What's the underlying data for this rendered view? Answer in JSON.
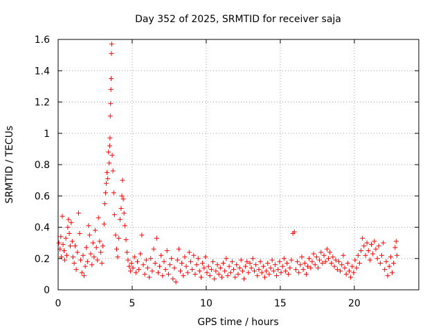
{
  "chart_data": {
    "type": "scatter",
    "title": "Day 352 of 2025, SRMTID for receiver saja",
    "xlabel": "GPS time / hours",
    "ylabel": "SRMTID / TECUs",
    "xlim": [
      0,
      24.35
    ],
    "ylim": [
      0,
      1.6
    ],
    "xticks": [
      0,
      5,
      10,
      15,
      20
    ],
    "xtick_labels": [
      "0",
      "5",
      "10",
      "15",
      "20"
    ],
    "yticks": [
      0,
      0.2,
      0.4,
      0.6,
      0.8,
      1.0,
      1.2,
      1.4,
      1.6
    ],
    "ytick_labels": [
      "0",
      "0.2",
      "0.4",
      "0.6",
      "0.8",
      "1",
      "1.2",
      "1.4",
      "1.6"
    ],
    "grid": true,
    "marker": "plus",
    "color": "#ff0000",
    "series": [
      {
        "name": "SRMTID",
        "points": [
          [
            0.05,
            0.3
          ],
          [
            0.12,
            0.26
          ],
          [
            0.18,
            0.34
          ],
          [
            0.22,
            0.21
          ],
          [
            0.28,
            0.47
          ],
          [
            0.33,
            0.29
          ],
          [
            0.4,
            0.25
          ],
          [
            0.45,
            0.19
          ],
          [
            0.52,
            0.33
          ],
          [
            0.58,
            0.22
          ],
          [
            0.65,
            0.4
          ],
          [
            0.7,
            0.45
          ],
          [
            0.75,
            0.36
          ],
          [
            0.82,
            0.28
          ],
          [
            0.88,
            0.43
          ],
          [
            0.95,
            0.31
          ],
          [
            1.0,
            0.21
          ],
          [
            1.08,
            0.17
          ],
          [
            1.15,
            0.28
          ],
          [
            1.22,
            0.13
          ],
          [
            1.3,
            0.24
          ],
          [
            1.38,
            0.49
          ],
          [
            1.45,
            0.36
          ],
          [
            1.52,
            0.19
          ],
          [
            1.6,
            0.11
          ],
          [
            1.68,
            0.22
          ],
          [
            1.75,
            0.09
          ],
          [
            1.83,
            0.15
          ],
          [
            1.9,
            0.27
          ],
          [
            1.98,
            0.18
          ],
          [
            2.05,
            0.41
          ],
          [
            2.12,
            0.35
          ],
          [
            2.2,
            0.23
          ],
          [
            2.28,
            0.16
          ],
          [
            2.35,
            0.3
          ],
          [
            2.42,
            0.21
          ],
          [
            2.5,
            0.38
          ],
          [
            2.58,
            0.27
          ],
          [
            2.65,
            0.19
          ],
          [
            2.72,
            0.46
          ],
          [
            2.8,
            0.31
          ],
          [
            2.88,
            0.24
          ],
          [
            2.95,
            0.17
          ],
          [
            3.02,
            0.28
          ],
          [
            3.1,
            0.42
          ],
          [
            3.15,
            0.55
          ],
          [
            3.2,
            0.62
          ],
          [
            3.25,
            0.68
          ],
          [
            3.3,
            0.75
          ],
          [
            3.35,
            0.71
          ],
          [
            3.4,
            0.88
          ],
          [
            3.45,
            0.81
          ],
          [
            3.48,
            0.92
          ],
          [
            3.5,
            0.97
          ],
          [
            3.52,
            1.11
          ],
          [
            3.54,
            1.19
          ],
          [
            3.56,
            1.28
          ],
          [
            3.58,
            1.35
          ],
          [
            3.6,
            1.51
          ],
          [
            3.62,
            1.57
          ],
          [
            3.65,
            0.86
          ],
          [
            3.7,
            0.76
          ],
          [
            3.75,
            0.62
          ],
          [
            3.8,
            0.48
          ],
          [
            3.88,
            0.35
          ],
          [
            3.95,
            0.26
          ],
          [
            4.02,
            0.21
          ],
          [
            4.1,
            0.33
          ],
          [
            4.18,
            0.45
          ],
          [
            4.25,
            0.52
          ],
          [
            4.3,
            0.6
          ],
          [
            4.35,
            0.7
          ],
          [
            4.4,
            0.58
          ],
          [
            4.45,
            0.49
          ],
          [
            4.5,
            0.41
          ],
          [
            4.58,
            0.32
          ],
          [
            4.65,
            0.24
          ],
          [
            4.72,
            0.19
          ],
          [
            4.8,
            0.15
          ],
          [
            4.88,
            0.12
          ],
          [
            4.95,
            0.17
          ],
          [
            5.05,
            0.14
          ],
          [
            5.15,
            0.21
          ],
          [
            5.25,
            0.11
          ],
          [
            5.35,
            0.18
          ],
          [
            5.45,
            0.13
          ],
          [
            5.55,
            0.23
          ],
          [
            5.65,
            0.35
          ],
          [
            5.75,
            0.16
          ],
          [
            5.85,
            0.1
          ],
          [
            5.95,
            0.19
          ],
          [
            6.05,
            0.14
          ],
          [
            6.15,
            0.08
          ],
          [
            6.25,
            0.2
          ],
          [
            6.35,
            0.12
          ],
          [
            6.45,
            0.26
          ],
          [
            6.55,
            0.17
          ],
          [
            6.65,
            0.33
          ],
          [
            6.75,
            0.11
          ],
          [
            6.85,
            0.15
          ],
          [
            6.95,
            0.22
          ],
          [
            7.05,
            0.09
          ],
          [
            7.15,
            0.18
          ],
          [
            7.25,
            0.13
          ],
          [
            7.35,
            0.25
          ],
          [
            7.45,
            0.1
          ],
          [
            7.55,
            0.16
          ],
          [
            7.65,
            0.2
          ],
          [
            7.75,
            0.07
          ],
          [
            7.85,
            0.14
          ],
          [
            7.95,
            0.05
          ],
          [
            8.05,
            0.19
          ],
          [
            8.15,
            0.26
          ],
          [
            8.25,
            0.12
          ],
          [
            8.35,
            0.17
          ],
          [
            8.45,
            0.09
          ],
          [
            8.55,
            0.21
          ],
          [
            8.65,
            0.15
          ],
          [
            8.75,
            0.11
          ],
          [
            8.85,
            0.24
          ],
          [
            8.95,
            0.18
          ],
          [
            9.05,
            0.13
          ],
          [
            9.15,
            0.22
          ],
          [
            9.25,
            0.1
          ],
          [
            9.35,
            0.16
          ],
          [
            9.45,
            0.2
          ],
          [
            9.55,
            0.12
          ],
          [
            9.65,
            0.08
          ],
          [
            9.75,
            0.17
          ],
          [
            9.85,
            0.14
          ],
          [
            9.95,
            0.21
          ],
          [
            10.05,
            0.11
          ],
          [
            10.15,
            0.15
          ],
          [
            10.25,
            0.09
          ],
          [
            10.35,
            0.13
          ],
          [
            10.45,
            0.18
          ],
          [
            10.55,
            0.07
          ],
          [
            10.65,
            0.12
          ],
          [
            10.75,
            0.16
          ],
          [
            10.85,
            0.1
          ],
          [
            10.95,
            0.14
          ],
          [
            11.05,
            0.08
          ],
          [
            11.15,
            0.17
          ],
          [
            11.25,
            0.12
          ],
          [
            11.35,
            0.2
          ],
          [
            11.45,
            0.09
          ],
          [
            11.55,
            0.15
          ],
          [
            11.65,
            0.11
          ],
          [
            11.75,
            0.18
          ],
          [
            11.85,
            0.13
          ],
          [
            11.95,
            0.08
          ],
          [
            12.05,
            0.16
          ],
          [
            12.15,
            0.1
          ],
          [
            12.25,
            0.14
          ],
          [
            12.35,
            0.19
          ],
          [
            12.45,
            0.12
          ],
          [
            12.55,
            0.07
          ],
          [
            12.65,
            0.15
          ],
          [
            12.75,
            0.18
          ],
          [
            12.85,
            0.11
          ],
          [
            12.95,
            0.17
          ],
          [
            13.05,
            0.14
          ],
          [
            13.15,
            0.2
          ],
          [
            13.25,
            0.12
          ],
          [
            13.35,
            0.16
          ],
          [
            13.45,
            0.09
          ],
          [
            13.55,
            0.13
          ],
          [
            13.65,
            0.18
          ],
          [
            13.75,
            0.11
          ],
          [
            13.85,
            0.15
          ],
          [
            13.95,
            0.08
          ],
          [
            14.05,
            0.12
          ],
          [
            14.15,
            0.17
          ],
          [
            14.25,
            0.1
          ],
          [
            14.35,
            0.14
          ],
          [
            14.45,
            0.19
          ],
          [
            14.55,
            0.12
          ],
          [
            14.65,
            0.16
          ],
          [
            14.75,
            0.09
          ],
          [
            14.85,
            0.13
          ],
          [
            14.95,
            0.18
          ],
          [
            15.05,
            0.11
          ],
          [
            15.15,
            0.15
          ],
          [
            15.25,
            0.2
          ],
          [
            15.35,
            0.12
          ],
          [
            15.45,
            0.17
          ],
          [
            15.55,
            0.1
          ],
          [
            15.65,
            0.14
          ],
          [
            15.75,
            0.19
          ],
          [
            15.85,
            0.36
          ],
          [
            15.95,
            0.37
          ],
          [
            16.05,
            0.13
          ],
          [
            16.15,
            0.18
          ],
          [
            16.25,
            0.11
          ],
          [
            16.35,
            0.16
          ],
          [
            16.45,
            0.21
          ],
          [
            16.55,
            0.13
          ],
          [
            16.65,
            0.17
          ],
          [
            16.75,
            0.1
          ],
          [
            16.85,
            0.15
          ],
          [
            16.95,
            0.2
          ],
          [
            17.05,
            0.14
          ],
          [
            17.15,
            0.18
          ],
          [
            17.25,
            0.23
          ],
          [
            17.35,
            0.16
          ],
          [
            17.45,
            0.21
          ],
          [
            17.55,
            0.14
          ],
          [
            17.65,
            0.19
          ],
          [
            17.75,
            0.24
          ],
          [
            17.85,
            0.17
          ],
          [
            17.95,
            0.22
          ],
          [
            18.05,
            0.18
          ],
          [
            18.15,
            0.26
          ],
          [
            18.25,
            0.2
          ],
          [
            18.35,
            0.24
          ],
          [
            18.45,
            0.17
          ],
          [
            18.55,
            0.21
          ],
          [
            18.65,
            0.15
          ],
          [
            18.75,
            0.19
          ],
          [
            18.85,
            0.13
          ],
          [
            18.95,
            0.18
          ],
          [
            19.05,
            0.12
          ],
          [
            19.15,
            0.16
          ],
          [
            19.25,
            0.22
          ],
          [
            19.35,
            0.14
          ],
          [
            19.45,
            0.1
          ],
          [
            19.55,
            0.17
          ],
          [
            19.65,
            0.12
          ],
          [
            19.75,
            0.08
          ],
          [
            19.85,
            0.15
          ],
          [
            19.95,
            0.11
          ],
          [
            20.05,
            0.19
          ],
          [
            20.15,
            0.14
          ],
          [
            20.25,
            0.22
          ],
          [
            20.35,
            0.17
          ],
          [
            20.45,
            0.25
          ],
          [
            20.55,
            0.33
          ],
          [
            20.65,
            0.28
          ],
          [
            20.75,
            0.22
          ],
          [
            20.85,
            0.3
          ],
          [
            20.95,
            0.25
          ],
          [
            21.05,
            0.19
          ],
          [
            21.15,
            0.29
          ],
          [
            21.25,
            0.23
          ],
          [
            21.35,
            0.31
          ],
          [
            21.45,
            0.26
          ],
          [
            21.55,
            0.2
          ],
          [
            21.65,
            0.28
          ],
          [
            21.75,
            0.17
          ],
          [
            21.85,
            0.22
          ],
          [
            21.95,
            0.3
          ],
          [
            22.05,
            0.13
          ],
          [
            22.15,
            0.18
          ],
          [
            22.25,
            0.09
          ],
          [
            22.35,
            0.15
          ],
          [
            22.45,
            0.21
          ],
          [
            22.55,
            0.11
          ],
          [
            22.65,
            0.17
          ],
          [
            22.75,
            0.27
          ],
          [
            22.82,
            0.31
          ],
          [
            22.88,
            0.22
          ]
        ]
      }
    ]
  }
}
